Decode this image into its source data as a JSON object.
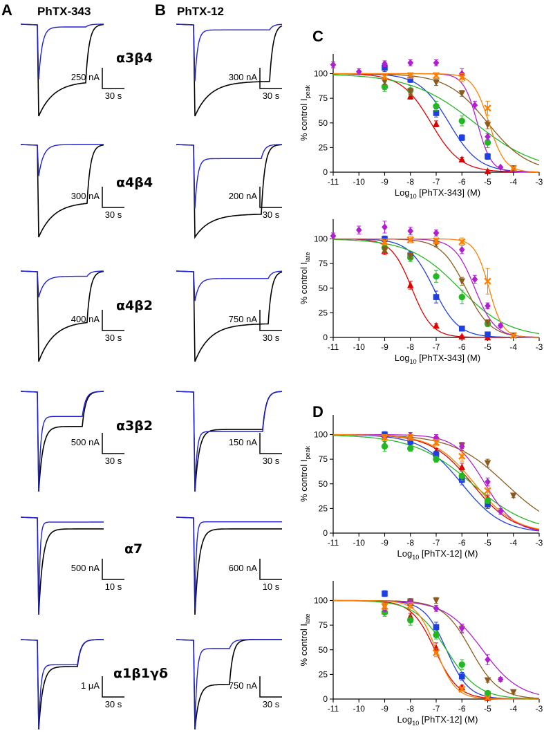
{
  "panel_labels": {
    "a": "A",
    "b": "B",
    "c": "C",
    "d": "D"
  },
  "column_titles": {
    "a": "PhTX-343",
    "b": "PhTX-12"
  },
  "receptor_labels": [
    "α3β4",
    "α4β4",
    "α4β2",
    "α3β2",
    "α7",
    "α1β1γδ"
  ],
  "traces": {
    "control_color": "#000000",
    "toxin_color": "#1f1fd6",
    "rows": [
      {
        "receptor": "α3β4",
        "a_scale": {
          "amplitude": "250 nA",
          "time": "30 s"
        },
        "b_scale": {
          "amplitude": "300 nA",
          "time": "30 s"
        }
      },
      {
        "receptor": "α4β4",
        "a_scale": {
          "amplitude": "300 nA",
          "time": "30 s"
        },
        "b_scale": {
          "amplitude": "200 nA",
          "time": "30 s"
        }
      },
      {
        "receptor": "α4β2",
        "a_scale": {
          "amplitude": "400 nA",
          "time": "30 s"
        },
        "b_scale": {
          "amplitude": "750 nA",
          "time": "30 s"
        }
      },
      {
        "receptor": "α3β2",
        "a_scale": {
          "amplitude": "500 nA",
          "time": "30 s"
        },
        "b_scale": {
          "amplitude": "150 nA",
          "time": "30 s"
        }
      },
      {
        "receptor": "α7",
        "a_scale": {
          "amplitude": "500 nA",
          "time": "10 s"
        },
        "b_scale": {
          "amplitude": "600 nA",
          "time": "10 s"
        }
      },
      {
        "receptor": "α1β1γδ",
        "a_scale": {
          "amplitude": "1 μA",
          "time": "30 s"
        },
        "b_scale": {
          "amplitude": "750 nA",
          "time": "30 s"
        }
      }
    ]
  },
  "chart_data": [
    {
      "type": "scatter",
      "id": "C-peak",
      "ylabel": "% control I",
      "ylabel_sub": "peak",
      "xlabel": "Log10 [PhTX-343] (M)",
      "xlim": [
        -11,
        -3
      ],
      "ylim": [
        0,
        120
      ],
      "xticks": [
        -11,
        -10,
        -9,
        -8,
        -7,
        -6,
        -5,
        -4,
        -3
      ],
      "yticks": [
        0,
        25,
        50,
        75,
        100
      ],
      "series": [
        {
          "color": "#e00000",
          "marker": "triangle-up",
          "x": [
            -9,
            -8,
            -7,
            -6,
            -5
          ],
          "y": [
            88,
            77,
            49,
            13,
            1
          ],
          "err": [
            4,
            3,
            3,
            2,
            1
          ],
          "ic50": -7.2,
          "hill": 0.75
        },
        {
          "color": "#1f3fe0",
          "marker": "square",
          "x": [
            -9,
            -8,
            -7,
            -6,
            -5
          ],
          "y": [
            106,
            94,
            60,
            35,
            16
          ],
          "err": [
            4,
            3,
            4,
            3,
            3
          ],
          "ic50": -6.5,
          "hill": 0.75
        },
        {
          "color": "#22b822",
          "marker": "circle",
          "x": [
            -9,
            -8,
            -7,
            -6,
            -5
          ],
          "y": [
            87,
            83,
            67,
            52,
            30
          ],
          "err": [
            5,
            5,
            5,
            5,
            5
          ],
          "ic50": -5.5,
          "hill": 0.35
        },
        {
          "color": "#8b5a1e",
          "marker": "triangle-down",
          "x": [
            -9,
            -8,
            -7,
            -6,
            -5,
            -4
          ],
          "y": [
            92,
            82,
            91,
            80,
            48,
            4
          ],
          "err": [
            3,
            3,
            3,
            3,
            4,
            1
          ],
          "ic50": -5.0,
          "hill": 0.55
        },
        {
          "color": "#b020d0",
          "marker": "diamond",
          "x": [
            -11,
            -10,
            -9,
            -8,
            -7,
            -6,
            -5.5,
            -5,
            -4.5
          ],
          "y": [
            109,
            102,
            110,
            111,
            111,
            100,
            68,
            36,
            5
          ],
          "err": [
            3,
            3,
            3,
            3,
            3,
            5,
            4,
            3,
            1
          ],
          "ic50": -5.4,
          "hill": 1.6
        },
        {
          "color": "#ff8000",
          "marker": "x",
          "x": [
            -9,
            -8,
            -7,
            -6,
            -5,
            -4
          ],
          "y": [
            97,
            98,
            98,
            96,
            65,
            4
          ],
          "err": [
            3,
            3,
            3,
            4,
            7,
            1
          ],
          "ic50": -4.95,
          "hill": 1.4
        }
      ]
    },
    {
      "type": "scatter",
      "id": "C-late",
      "ylabel": "% control I",
      "ylabel_sub": "late",
      "xlabel": "Log10 [PhTX-343] (M)",
      "xlim": [
        -11,
        -3
      ],
      "ylim": [
        0,
        120
      ],
      "xticks": [
        -11,
        -10,
        -9,
        -8,
        -7,
        -6,
        -5,
        -4,
        -3
      ],
      "yticks": [
        0,
        25,
        50,
        75,
        100
      ],
      "series": [
        {
          "color": "#e00000",
          "marker": "triangle-up",
          "x": [
            -9,
            -8,
            -7,
            -6,
            -5
          ],
          "y": [
            88,
            53,
            12,
            1,
            0
          ],
          "err": [
            4,
            4,
            2,
            1,
            1
          ],
          "ic50": -7.95,
          "hill": 1.1
        },
        {
          "color": "#1f3fe0",
          "marker": "square",
          "x": [
            -9,
            -8,
            -7,
            -6,
            -5
          ],
          "y": [
            100,
            83,
            41,
            9,
            3
          ],
          "err": [
            3,
            4,
            6,
            2,
            1
          ],
          "ic50": -7.1,
          "hill": 0.9
        },
        {
          "color": "#22b822",
          "marker": "circle",
          "x": [
            -9,
            -8,
            -7,
            -6,
            -5
          ],
          "y": [
            91,
            81,
            62,
            41,
            14
          ],
          "err": [
            4,
            4,
            6,
            7,
            3
          ],
          "ic50": -6.1,
          "hill": 0.45
        },
        {
          "color": "#8b5a1e",
          "marker": "triangle-down",
          "x": [
            -9,
            -8,
            -7,
            -6,
            -5,
            -4
          ],
          "y": [
            89,
            83,
            95,
            57,
            15,
            2
          ],
          "err": [
            3,
            3,
            3,
            4,
            3,
            1
          ],
          "ic50": -5.85,
          "hill": 0.9
        },
        {
          "color": "#b020d0",
          "marker": "diamond",
          "x": [
            -11,
            -10,
            -9,
            -8,
            -7,
            -6,
            -5.5,
            -5,
            -4.5
          ],
          "y": [
            103,
            109,
            112,
            108,
            106,
            89,
            59,
            32,
            12
          ],
          "err": [
            3,
            4,
            6,
            4,
            3,
            4,
            4,
            3,
            2
          ],
          "ic50": -5.5,
          "hill": 1.1
        },
        {
          "color": "#ff8000",
          "marker": "x",
          "x": [
            -9,
            -8,
            -7,
            -6,
            -5,
            -4
          ],
          "y": [
            97,
            99,
            98,
            97,
            57,
            2
          ],
          "err": [
            3,
            3,
            3,
            4,
            13,
            1
          ],
          "ic50": -4.95,
          "hill": 1.6
        }
      ]
    },
    {
      "type": "scatter",
      "id": "D-peak",
      "ylabel": "% control I",
      "ylabel_sub": "peak",
      "xlabel": "Log10 [PhTX-12] (M)",
      "xlim": [
        -11,
        -3
      ],
      "ylim": [
        0,
        120
      ],
      "xticks": [
        -11,
        -10,
        -9,
        -8,
        -7,
        -6,
        -5,
        -4,
        -3
      ],
      "yticks": [
        0,
        25,
        50,
        75,
        100
      ],
      "series": [
        {
          "color": "#e00000",
          "marker": "triangle-up",
          "x": [
            -9,
            -8,
            -7,
            -6,
            -5
          ],
          "y": [
            90,
            88,
            83,
            67,
            35
          ],
          "err": [
            3,
            3,
            3,
            4,
            3
          ],
          "ic50": -5.6,
          "hill": 0.55
        },
        {
          "color": "#1f3fe0",
          "marker": "square",
          "x": [
            -9,
            -8,
            -7,
            -6,
            -5
          ],
          "y": [
            100,
            93,
            80,
            54,
            29
          ],
          "err": [
            3,
            3,
            3,
            5,
            4
          ],
          "ic50": -6.0,
          "hill": 0.55
        },
        {
          "color": "#22b822",
          "marker": "circle",
          "x": [
            -9,
            -8,
            -7,
            -6,
            -5
          ],
          "y": [
            88,
            86,
            75,
            58,
            33
          ],
          "err": [
            5,
            3,
            3,
            5,
            3
          ],
          "ic50": -5.6,
          "hill": 0.38
        },
        {
          "color": "#8b5a1e",
          "marker": "triangle-down",
          "x": [
            -9,
            -8,
            -7,
            -6,
            -5,
            -4
          ],
          "y": [
            97,
            97,
            93,
            89,
            71,
            38
          ],
          "err": [
            3,
            3,
            3,
            3,
            4,
            2
          ],
          "ic50": -4.3,
          "hill": 0.42
        },
        {
          "color": "#b020d0",
          "marker": "diamond",
          "x": [
            -9,
            -8,
            -7,
            -6,
            -5,
            -4.5
          ],
          "y": [
            97,
            99,
            97,
            88,
            52,
            22
          ],
          "err": [
            3,
            3,
            3,
            4,
            4,
            3
          ],
          "ic50": -5.1,
          "hill": 0.75
        },
        {
          "color": "#ff8000",
          "marker": "x",
          "x": [
            -9,
            -8,
            -7,
            -6,
            -5
          ],
          "y": [
            97,
            97,
            92,
            78,
            43
          ],
          "err": [
            3,
            3,
            3,
            5,
            4
          ],
          "ic50": -5.5,
          "hill": 0.55
        }
      ]
    },
    {
      "type": "scatter",
      "id": "D-late",
      "ylabel": "% control I",
      "ylabel_sub": "late",
      "xlabel": "Log10 [PhTX-12] (M)",
      "xlim": [
        -11,
        -3
      ],
      "ylim": [
        0,
        120
      ],
      "xticks": [
        -11,
        -10,
        -9,
        -8,
        -7,
        -6,
        -5,
        -4,
        -3
      ],
      "yticks": [
        0,
        25,
        50,
        75,
        100
      ],
      "series": [
        {
          "color": "#e00000",
          "marker": "triangle-up",
          "x": [
            -9,
            -8,
            -7,
            -6,
            -5
          ],
          "y": [
            89,
            84,
            52,
            12,
            1
          ],
          "err": [
            3,
            3,
            5,
            2,
            1
          ],
          "ic50": -7.05,
          "hill": 0.95
        },
        {
          "color": "#1f3fe0",
          "marker": "square",
          "x": [
            -9,
            -8,
            -7,
            -6,
            -5
          ],
          "y": [
            107,
            98,
            73,
            23,
            5
          ],
          "err": [
            3,
            3,
            5,
            4,
            1
          ],
          "ic50": -6.6,
          "hill": 1.0
        },
        {
          "color": "#22b822",
          "marker": "circle",
          "x": [
            -9,
            -8,
            -7,
            -6,
            -5
          ],
          "y": [
            88,
            80,
            65,
            35,
            6
          ],
          "err": [
            4,
            5,
            4,
            5,
            1
          ],
          "ic50": -6.6,
          "hill": 0.7
        },
        {
          "color": "#8b5a1e",
          "marker": "triangle-down",
          "x": [
            -9,
            -8,
            -7,
            -6,
            -5,
            -4
          ],
          "y": [
            94,
            99,
            100,
            71,
            19,
            7
          ],
          "err": [
            3,
            3,
            3,
            4,
            2,
            1
          ],
          "ic50": -5.65,
          "hill": 0.8
        },
        {
          "color": "#b020d0",
          "marker": "diamond",
          "x": [
            -9,
            -8,
            -7,
            -6,
            -5,
            -4.5
          ],
          "y": [
            92,
            98,
            92,
            72,
            40,
            20
          ],
          "err": [
            3,
            3,
            3,
            4,
            5,
            2
          ],
          "ic50": -5.2,
          "hill": 0.6
        },
        {
          "color": "#ff8000",
          "marker": "x",
          "x": [
            -9,
            -8,
            -7,
            -6,
            -5
          ],
          "y": [
            94,
            95,
            47,
            10,
            1
          ],
          "err": [
            3,
            3,
            4,
            2,
            1
          ],
          "ic50": -7.0,
          "hill": 1.15
        }
      ]
    }
  ]
}
